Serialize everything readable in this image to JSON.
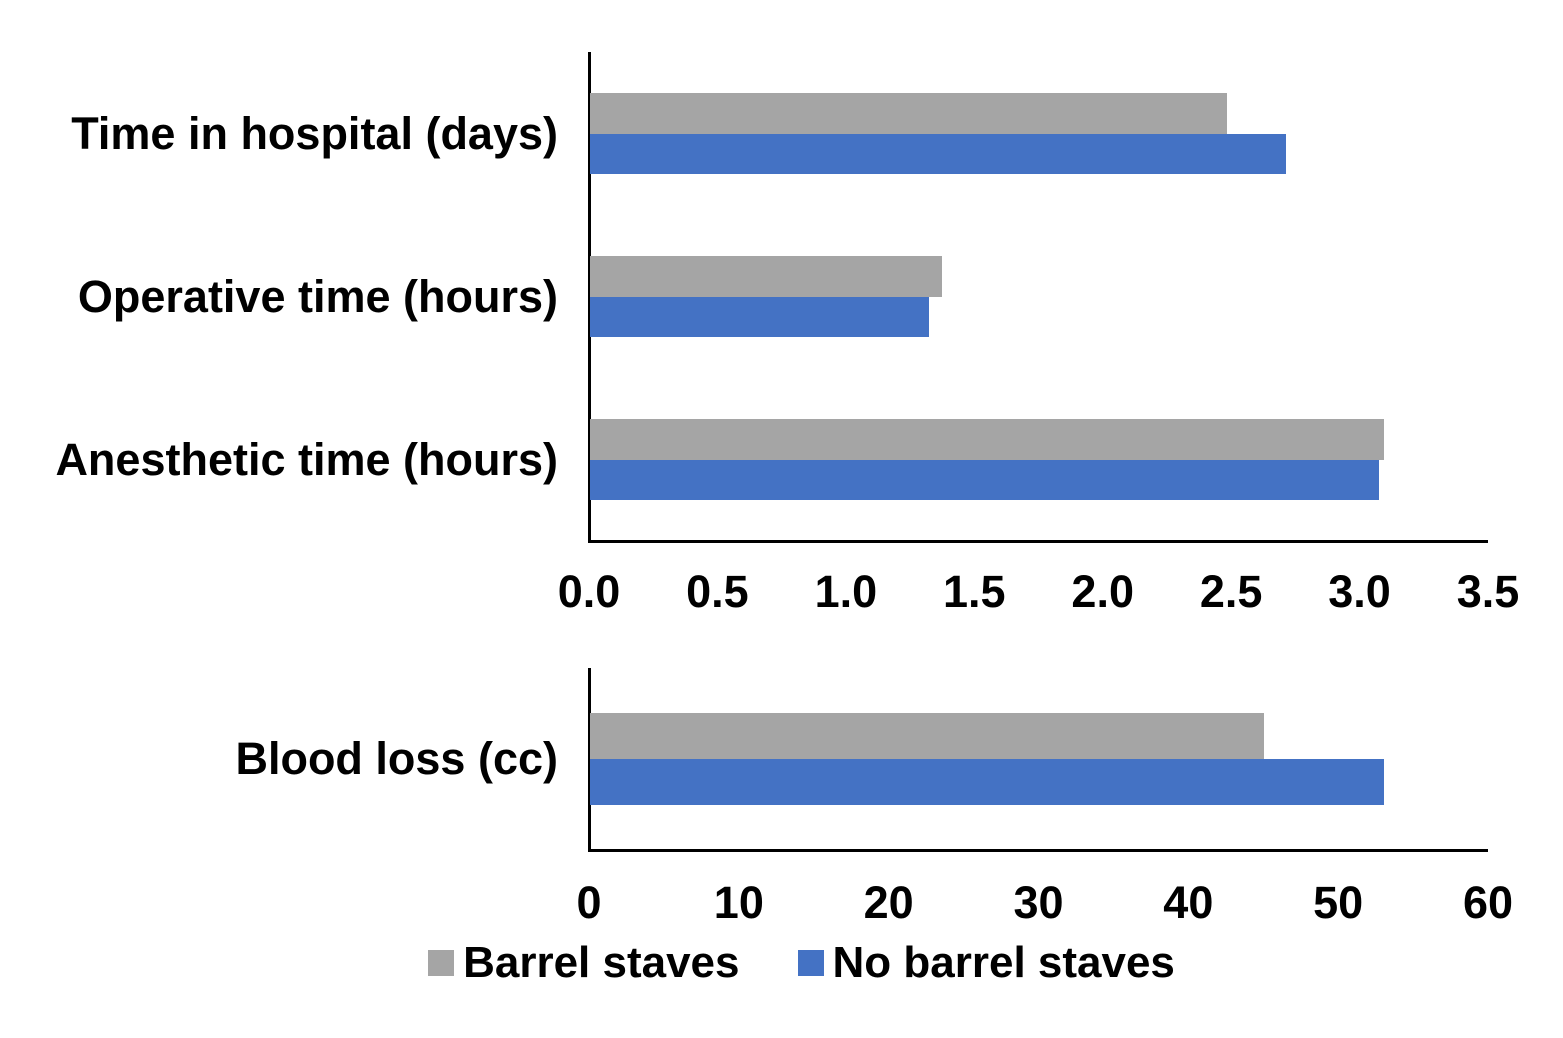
{
  "colors": {
    "barrel_staves": "#A5A5A5",
    "no_barrel_staves": "#4472C4",
    "axis": "#000000",
    "text": "#000000",
    "background": "#FFFFFF"
  },
  "legend": {
    "items": [
      {
        "label": "Barrel staves",
        "color": "#A5A5A5"
      },
      {
        "label": "No barrel staves",
        "color": "#4472C4"
      }
    ]
  },
  "chart_data": [
    {
      "type": "bar",
      "orientation": "horizontal",
      "title": "",
      "categories": [
        "Time in hospital (days)",
        "Operative time (hours)",
        "Anesthetic time (hours)"
      ],
      "series": [
        {
          "name": "Barrel staves",
          "color": "#A5A5A5",
          "values": [
            2.48,
            1.37,
            3.09
          ]
        },
        {
          "name": "No barrel staves",
          "color": "#4472C4",
          "values": [
            2.71,
            1.32,
            3.07
          ]
        }
      ],
      "xlim": [
        0,
        3.5
      ],
      "xticks": [
        "0.0",
        "0.5",
        "1.0",
        "1.5",
        "2.0",
        "2.5",
        "3.0",
        "3.5"
      ],
      "xlabel": "",
      "ylabel": "",
      "grid": false,
      "legend_position": "shared-bottom"
    },
    {
      "type": "bar",
      "orientation": "horizontal",
      "title": "",
      "categories": [
        "Blood loss (cc)"
      ],
      "series": [
        {
          "name": "Barrel staves",
          "color": "#A5A5A5",
          "values": [
            45
          ]
        },
        {
          "name": "No barrel staves",
          "color": "#4472C4",
          "values": [
            53
          ]
        }
      ],
      "xlim": [
        0,
        60
      ],
      "xticks": [
        "0",
        "10",
        "20",
        "30",
        "40",
        "50",
        "60"
      ],
      "xlabel": "",
      "ylabel": "",
      "grid": false,
      "legend_position": "shared-bottom"
    }
  ]
}
